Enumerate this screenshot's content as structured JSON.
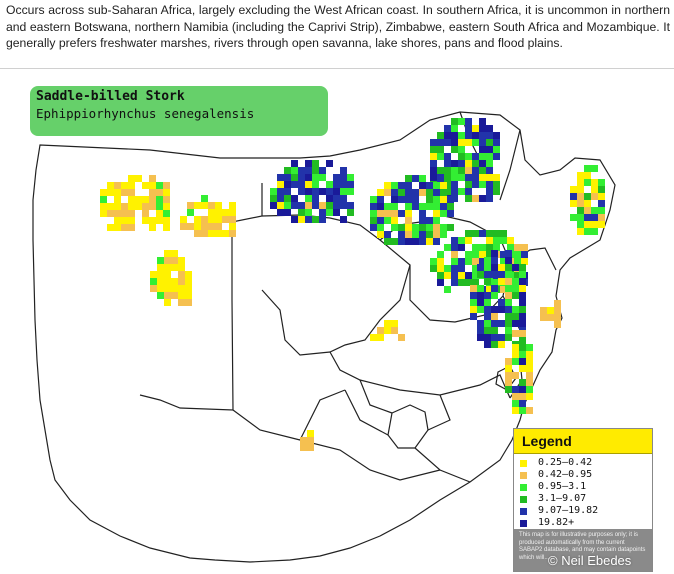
{
  "description": "Occurs across sub-Saharan Africa, largely excluding the West African coast. In southern Africa, it is uncommon in northern and eastern Botswana, northern Namibia (including the Caprivi Strip), Zimbabwe, eastern South Africa and Mozambique. It generally prefers freshwater marshes, rivers through open savanna, lake shores, pans and flood plains.",
  "species": {
    "common_name": "Saddle-billed Stork",
    "scientific_name": "Ephippiorhynchus senegalensis"
  },
  "legend": {
    "title": "Legend",
    "items": [
      {
        "label": "0.25–0.42",
        "color": "#fff200"
      },
      {
        "label": "0.42–0.95",
        "color": "#f5c050"
      },
      {
        "label": "0.95–3.1",
        "color": "#33ee33"
      },
      {
        "label": "3.1–9.07",
        "color": "#22bb22"
      },
      {
        "label": "9.07–19.82",
        "color": "#2233aa"
      },
      {
        "label": "19.82+",
        "color": "#1a1a99"
      }
    ],
    "note": "This map is for illustrative purposes only; it is produced automatically from the current SABAP2 database, and may contain datapoints which will..."
  },
  "copyright": "© Neil Ebedes",
  "colors": {
    "species_box": "#66d06a",
    "legend_title_bg": "#ffeb00",
    "legend_note_bg": "#8a8a8a"
  }
}
